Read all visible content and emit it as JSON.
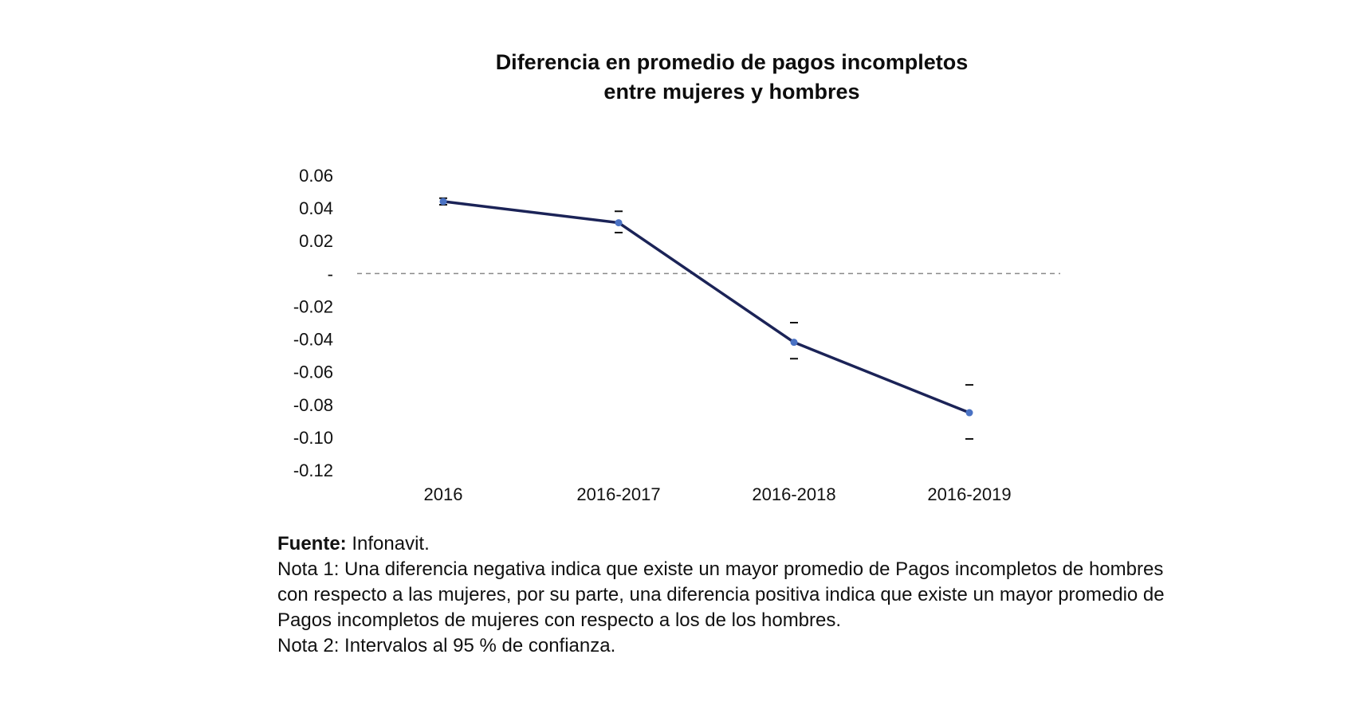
{
  "chart_data": {
    "type": "line",
    "title": [
      "Diferencia en promedio de pagos incompletos",
      "entre mujeres y hombres"
    ],
    "categories": [
      "2016",
      "2016-2017",
      "2016-2018",
      "2016-2019"
    ],
    "series": [
      {
        "name": "Diferencia",
        "values": [
          0.044,
          0.031,
          -0.042,
          -0.085
        ],
        "ci_low": [
          0.042,
          0.025,
          -0.052,
          -0.101
        ],
        "ci_high": [
          0.046,
          0.038,
          -0.03,
          -0.068
        ]
      }
    ],
    "ylim": [
      -0.12,
      0.06
    ],
    "yticks": [
      0.06,
      0.04,
      0.02,
      0,
      -0.02,
      -0.04,
      -0.06,
      -0.08,
      -0.1,
      -0.12
    ],
    "ytick_labels": [
      "0.06",
      "0.04",
      "0.02",
      "-",
      "-0.02",
      "-0.04",
      "-0.06",
      "-0.08",
      "-0.10",
      "-0.12"
    ],
    "reference_line": 0,
    "xlabel": "",
    "ylabel": "",
    "colors": {
      "line": "#1b2357",
      "marker": "#4a72c4",
      "ci": "#111111",
      "reference": "#8a8a8a"
    }
  },
  "notes": {
    "source_label": "Fuente:",
    "source_value": " Infonavit.",
    "note1": "Nota 1: Una diferencia negativa indica que existe un mayor promedio de Pagos incompletos de hombres con respecto a las mujeres, por su parte, una diferencia positiva indica que existe un mayor promedio de Pagos incompletos de mujeres con respecto a los de los hombres.",
    "note2": "Nota 2: Intervalos al 95 % de confianza."
  }
}
